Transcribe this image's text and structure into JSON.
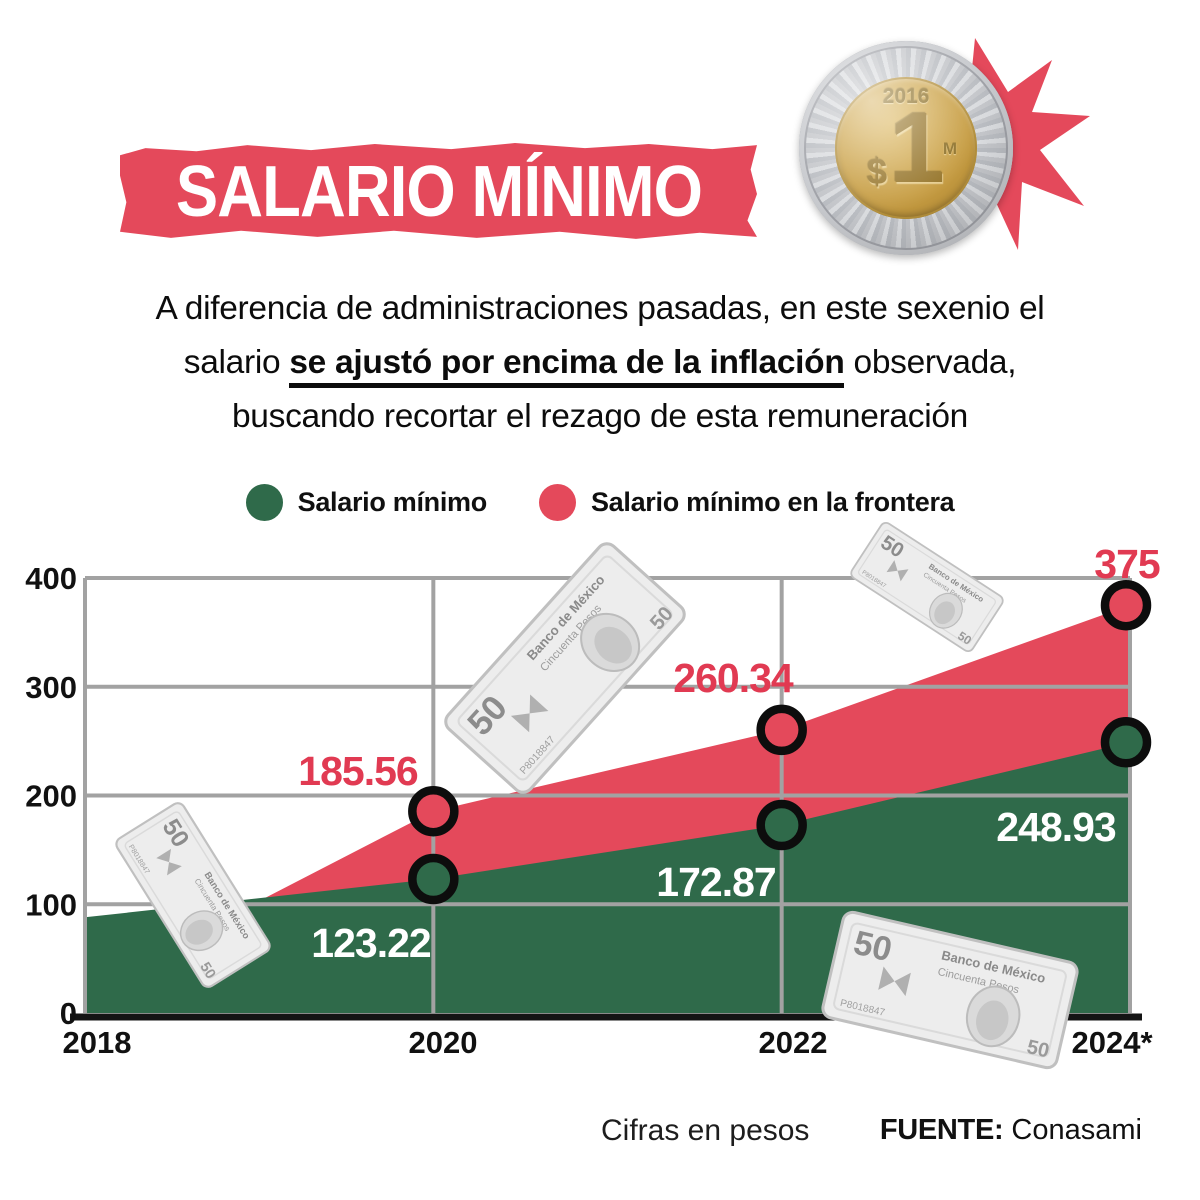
{
  "title": "SALARIO MÍNIMO",
  "coin": {
    "year": "2016",
    "currency_symbol": "$",
    "denomination": "1",
    "mint_mark": "M"
  },
  "intro": {
    "line1": "A diferencia de administraciones pasadas, en este sexenio el",
    "line2_prefix": "salario ",
    "line2_emphasis": "se ajustó por encima de la inflación",
    "line2_suffix": " observada,",
    "line3": "buscando recortar el rezago de esta remuneración"
  },
  "legend": {
    "items": [
      {
        "label": "Salario mínimo",
        "color": "#2f6a4a"
      },
      {
        "label": "Salario mínimo en la frontera",
        "color": "#e4495b"
      }
    ]
  },
  "chart_data": {
    "type": "area",
    "x": [
      2018,
      2020,
      2022,
      2024
    ],
    "x_tick_labels": [
      "2018",
      "2020",
      "2022",
      "2024*"
    ],
    "x_gridlines": [
      2020,
      2022
    ],
    "yticks": [
      0,
      100,
      200,
      300,
      400
    ],
    "ylim": [
      0,
      400
    ],
    "grid": true,
    "series": [
      {
        "name": "Salario mínimo",
        "color": "#2f6a4a",
        "label_color": "#ffffff",
        "x": [
          2018,
          2020,
          2022,
          2024
        ],
        "values": [
          88,
          123.22,
          172.87,
          248.93
        ],
        "labels": [
          "",
          "123.22",
          "172.87",
          "248.93"
        ],
        "note": "2018 value ~88 estimated from chart position"
      },
      {
        "name": "Salario mínimo en la frontera",
        "color": "#e4495b",
        "label_color": "#e13a52",
        "x": [
          2019,
          2020,
          2022,
          2024
        ],
        "values": [
          103,
          185.56,
          260.34,
          375
        ],
        "labels": [
          "",
          "185.56",
          "260.34",
          "375"
        ],
        "note": "area emerges ~2019 at ~103, estimated from chart position"
      }
    ]
  },
  "decorations": {
    "banknote": {
      "big_value": "50",
      "bank": "Banco de México",
      "words": "Cincuenta Pesos",
      "serial": "P8018847"
    }
  },
  "colors": {
    "red": "#e4495b",
    "green": "#2f6a4a",
    "grid": "#a2a2a2",
    "axis": "#141414",
    "text": "#111111"
  },
  "footer": {
    "note": "Cifras en pesos",
    "source_bold": "FUENTE:",
    "source_name": " Conasami"
  }
}
